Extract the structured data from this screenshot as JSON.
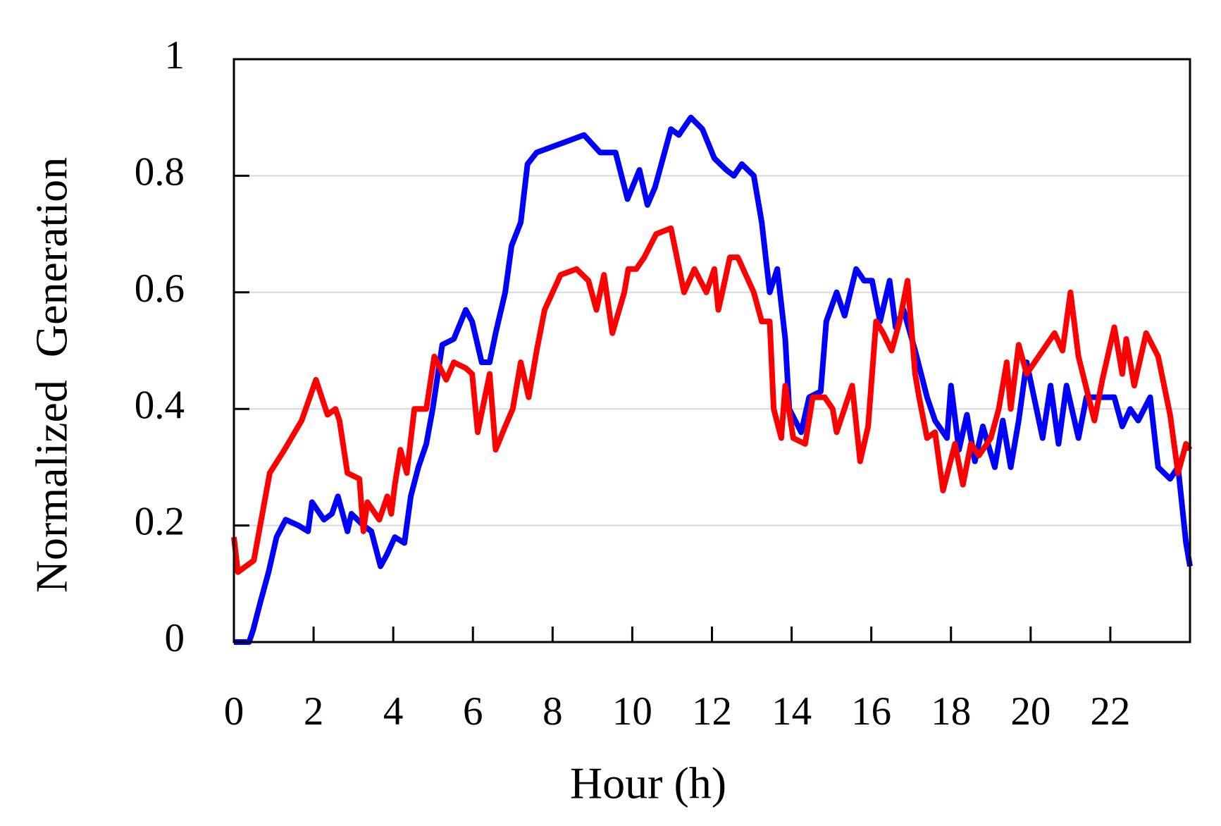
{
  "chart_data": {
    "type": "line",
    "x_label": "Hour (h)",
    "y_label": "Normalized  Generation",
    "xlim": [
      0,
      24
    ],
    "xticks": [
      0,
      2,
      4,
      6,
      8,
      10,
      12,
      14,
      16,
      18,
      20,
      22
    ],
    "ylim": [
      0,
      1
    ],
    "yticks": [
      0,
      0.2,
      0.4,
      0.6,
      0.8,
      1
    ],
    "grid": true,
    "series": [
      {
        "color": "#0000ff",
        "x": [
          0,
          0.38,
          0.48,
          0.67,
          0.87,
          1.07,
          1.3,
          1.62,
          1.86,
          1.96,
          2.26,
          2.46,
          2.61,
          2.85,
          2.95,
          3.25,
          3.45,
          3.68,
          3.84,
          4.04,
          4.28,
          4.44,
          4.63,
          4.83,
          4.99,
          5.23,
          5.52,
          5.82,
          5.98,
          6.22,
          6.42,
          6.57,
          6.81,
          6.97,
          7.2,
          7.37,
          7.6,
          8.0,
          8.4,
          8.79,
          9.19,
          9.58,
          9.88,
          10.18,
          10.38,
          10.57,
          10.77,
          10.97,
          11.17,
          11.47,
          11.76,
          12.06,
          12.36,
          12.55,
          12.75,
          13.05,
          13.25,
          13.45,
          13.64,
          13.84,
          13.94,
          14.24,
          14.44,
          14.73,
          14.87,
          15.13,
          15.33,
          15.62,
          15.82,
          16.02,
          16.22,
          16.46,
          16.61,
          16.81,
          17.1,
          17.4,
          17.6,
          17.9,
          18.0,
          18.2,
          18.4,
          18.6,
          18.8,
          19.1,
          19.3,
          19.5,
          19.7,
          19.9,
          20.3,
          20.5,
          20.7,
          20.9,
          21.2,
          21.4,
          22.1,
          22.3,
          22.5,
          22.7,
          23.0,
          23.2,
          23.5,
          23.7,
          23.9,
          24.0
        ],
        "values": [
          0,
          0,
          0.02,
          0.07,
          0.12,
          0.18,
          0.21,
          0.2,
          0.19,
          0.24,
          0.21,
          0.22,
          0.25,
          0.19,
          0.22,
          0.2,
          0.19,
          0.13,
          0.15,
          0.18,
          0.17,
          0.25,
          0.3,
          0.34,
          0.4,
          0.51,
          0.52,
          0.57,
          0.55,
          0.48,
          0.48,
          0.53,
          0.6,
          0.68,
          0.72,
          0.82,
          0.84,
          0.85,
          0.86,
          0.87,
          0.84,
          0.84,
          0.76,
          0.81,
          0.75,
          0.78,
          0.83,
          0.88,
          0.87,
          0.9,
          0.88,
          0.83,
          0.81,
          0.8,
          0.82,
          0.8,
          0.72,
          0.6,
          0.64,
          0.52,
          0.4,
          0.36,
          0.42,
          0.43,
          0.55,
          0.6,
          0.56,
          0.64,
          0.62,
          0.62,
          0.55,
          0.62,
          0.54,
          0.57,
          0.5,
          0.42,
          0.38,
          0.35,
          0.44,
          0.33,
          0.39,
          0.31,
          0.37,
          0.3,
          0.38,
          0.3,
          0.38,
          0.48,
          0.35,
          0.44,
          0.34,
          0.44,
          0.35,
          0.42,
          0.42,
          0.37,
          0.4,
          0.38,
          0.42,
          0.3,
          0.28,
          0.3,
          0.17,
          0.13
        ]
      },
      {
        "color": "#ff0000",
        "x": [
          0,
          0.1,
          0.5,
          0.9,
          1.27,
          1.7,
          2.06,
          2.35,
          2.55,
          2.65,
          2.85,
          3.15,
          3.25,
          3.35,
          3.65,
          3.85,
          3.95,
          4.04,
          4.18,
          4.34,
          4.53,
          4.83,
          5.03,
          5.33,
          5.52,
          5.82,
          5.98,
          6.12,
          6.42,
          6.57,
          6.81,
          7.0,
          7.2,
          7.4,
          7.6,
          7.8,
          8.2,
          8.6,
          8.9,
          9.1,
          9.29,
          9.5,
          9.8,
          9.9,
          10.1,
          10.3,
          10.6,
          10.97,
          11.3,
          11.56,
          11.86,
          12.06,
          12.16,
          12.26,
          12.45,
          12.65,
          12.85,
          13.05,
          13.25,
          13.45,
          13.55,
          13.74,
          13.84,
          14.04,
          14.34,
          14.53,
          14.83,
          15.03,
          15.13,
          15.52,
          15.72,
          15.92,
          16.12,
          16.3,
          16.51,
          16.71,
          16.91,
          17.1,
          17.2,
          17.4,
          17.6,
          17.8,
          18.1,
          18.3,
          18.5,
          18.7,
          19.0,
          19.2,
          19.4,
          19.5,
          19.7,
          19.9,
          20.3,
          20.6,
          20.8,
          21.0,
          21.2,
          21.6,
          21.8,
          22.1,
          22.3,
          22.4,
          22.6,
          22.8,
          22.9,
          23.2,
          23.5,
          23.7,
          23.9,
          24.0
        ],
        "values": [
          0.18,
          0.12,
          0.14,
          0.29,
          0.33,
          0.38,
          0.45,
          0.39,
          0.4,
          0.38,
          0.29,
          0.28,
          0.19,
          0.24,
          0.21,
          0.25,
          0.22,
          0.27,
          0.33,
          0.29,
          0.4,
          0.4,
          0.49,
          0.45,
          0.48,
          0.47,
          0.46,
          0.36,
          0.46,
          0.33,
          0.37,
          0.4,
          0.48,
          0.42,
          0.5,
          0.57,
          0.63,
          0.64,
          0.62,
          0.57,
          0.63,
          0.53,
          0.6,
          0.64,
          0.64,
          0.66,
          0.7,
          0.71,
          0.6,
          0.64,
          0.6,
          0.64,
          0.57,
          0.6,
          0.66,
          0.66,
          0.63,
          0.6,
          0.55,
          0.55,
          0.4,
          0.35,
          0.44,
          0.35,
          0.34,
          0.42,
          0.42,
          0.4,
          0.36,
          0.44,
          0.31,
          0.37,
          0.55,
          0.53,
          0.5,
          0.55,
          0.62,
          0.46,
          0.42,
          0.35,
          0.36,
          0.26,
          0.34,
          0.27,
          0.34,
          0.32,
          0.35,
          0.4,
          0.48,
          0.4,
          0.51,
          0.46,
          0.5,
          0.53,
          0.5,
          0.6,
          0.49,
          0.38,
          0.45,
          0.54,
          0.46,
          0.52,
          0.44,
          0.5,
          0.53,
          0.49,
          0.39,
          0.29,
          0.34,
          0.33
        ]
      }
    ]
  }
}
